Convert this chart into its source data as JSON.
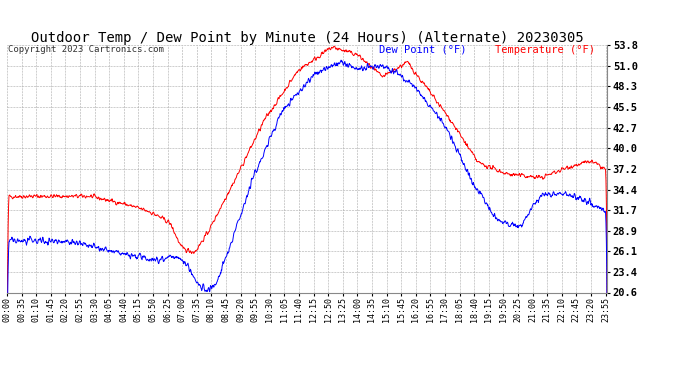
{
  "title": "Outdoor Temp / Dew Point by Minute (24 Hours) (Alternate) 20230305",
  "copyright": "Copyright 2023 Cartronics.com",
  "legend_blue": "Dew Point (°F)",
  "legend_red": "Temperature (°F)",
  "y_ticks": [
    20.6,
    23.4,
    26.1,
    28.9,
    31.7,
    34.4,
    37.2,
    40.0,
    42.7,
    45.5,
    48.3,
    51.0,
    53.8
  ],
  "ylim": [
    20.6,
    53.8
  ],
  "bg_color": "#ffffff",
  "grid_color": "#aaaaaa",
  "line_color_temp": "#ff0000",
  "line_color_dew": "#0000ff",
  "title_fontsize": 10,
  "x_tick_interval_minutes": 35,
  "n_minutes": 1440
}
